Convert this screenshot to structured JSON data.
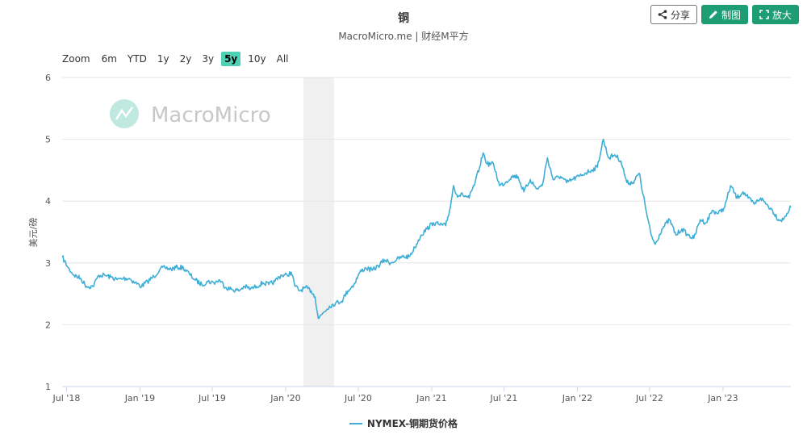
{
  "chart_data": {
    "type": "line",
    "title": "铜",
    "subtitle": "MacroMicro.me | 财经M平方",
    "ylabel": "美元/磅",
    "ylim": [
      1,
      6
    ],
    "yticks": [
      "1",
      "2",
      "3",
      "4",
      "5",
      "6"
    ],
    "xlim": [
      "2018-06-20",
      "2023-06-20"
    ],
    "xticks": [
      {
        "date": "2018-07-01",
        "label": "Jul '18"
      },
      {
        "date": "2019-01-01",
        "label": "Jan '19"
      },
      {
        "date": "2019-07-01",
        "label": "Jul '19"
      },
      {
        "date": "2020-01-01",
        "label": "Jan '20"
      },
      {
        "date": "2020-07-01",
        "label": "Jul '20"
      },
      {
        "date": "2021-01-01",
        "label": "Jan '21"
      },
      {
        "date": "2021-07-01",
        "label": "Jul '21"
      },
      {
        "date": "2022-01-01",
        "label": "Jan '22"
      },
      {
        "date": "2022-07-01",
        "label": "Jul '22"
      },
      {
        "date": "2023-01-01",
        "label": "Jan '23"
      }
    ],
    "recession_band": {
      "start": "2020-02-15",
      "end": "2020-05-01",
      "color": "#f0f0f0"
    },
    "grid": true,
    "legend_position": "bottom-center",
    "series": [
      {
        "name": "NYMEX-铜期货价格",
        "color": "#3faed6",
        "points": [
          [
            "2018-06-20",
            3.1
          ],
          [
            "2018-07-05",
            2.92
          ],
          [
            "2018-07-20",
            2.8
          ],
          [
            "2018-08-05",
            2.75
          ],
          [
            "2018-08-20",
            2.62
          ],
          [
            "2018-09-05",
            2.62
          ],
          [
            "2018-09-20",
            2.8
          ],
          [
            "2018-10-05",
            2.8
          ],
          [
            "2018-10-20",
            2.77
          ],
          [
            "2018-11-05",
            2.73
          ],
          [
            "2018-11-20",
            2.75
          ],
          [
            "2018-12-05",
            2.75
          ],
          [
            "2018-12-20",
            2.68
          ],
          [
            "2019-01-05",
            2.62
          ],
          [
            "2019-01-20",
            2.7
          ],
          [
            "2019-02-05",
            2.78
          ],
          [
            "2019-02-20",
            2.9
          ],
          [
            "2019-03-05",
            2.92
          ],
          [
            "2019-03-20",
            2.9
          ],
          [
            "2019-04-05",
            2.93
          ],
          [
            "2019-04-20",
            2.92
          ],
          [
            "2019-05-05",
            2.82
          ],
          [
            "2019-05-20",
            2.72
          ],
          [
            "2019-06-05",
            2.65
          ],
          [
            "2019-06-20",
            2.7
          ],
          [
            "2019-07-05",
            2.68
          ],
          [
            "2019-07-20",
            2.72
          ],
          [
            "2019-08-05",
            2.6
          ],
          [
            "2019-08-20",
            2.57
          ],
          [
            "2019-09-05",
            2.55
          ],
          [
            "2019-09-20",
            2.62
          ],
          [
            "2019-10-05",
            2.58
          ],
          [
            "2019-10-20",
            2.62
          ],
          [
            "2019-11-05",
            2.68
          ],
          [
            "2019-11-20",
            2.65
          ],
          [
            "2019-12-05",
            2.7
          ],
          [
            "2019-12-20",
            2.8
          ],
          [
            "2020-01-05",
            2.8
          ],
          [
            "2020-01-15",
            2.85
          ],
          [
            "2020-01-25",
            2.62
          ],
          [
            "2020-02-05",
            2.55
          ],
          [
            "2020-02-20",
            2.6
          ],
          [
            "2020-03-05",
            2.55
          ],
          [
            "2020-03-15",
            2.45
          ],
          [
            "2020-03-23",
            2.1
          ],
          [
            "2020-04-05",
            2.2
          ],
          [
            "2020-04-20",
            2.3
          ],
          [
            "2020-05-05",
            2.35
          ],
          [
            "2020-05-20",
            2.38
          ],
          [
            "2020-06-05",
            2.55
          ],
          [
            "2020-06-20",
            2.65
          ],
          [
            "2020-07-05",
            2.85
          ],
          [
            "2020-07-20",
            2.92
          ],
          [
            "2020-08-05",
            2.88
          ],
          [
            "2020-08-20",
            2.95
          ],
          [
            "2020-09-05",
            3.05
          ],
          [
            "2020-09-20",
            3.0
          ],
          [
            "2020-10-05",
            3.05
          ],
          [
            "2020-10-20",
            3.1
          ],
          [
            "2020-11-05",
            3.1
          ],
          [
            "2020-11-20",
            3.25
          ],
          [
            "2020-12-05",
            3.45
          ],
          [
            "2020-12-20",
            3.55
          ],
          [
            "2021-01-05",
            3.65
          ],
          [
            "2021-01-20",
            3.62
          ],
          [
            "2021-02-05",
            3.6
          ],
          [
            "2021-02-15",
            3.85
          ],
          [
            "2021-02-25",
            4.25
          ],
          [
            "2021-03-05",
            4.1
          ],
          [
            "2021-03-20",
            4.1
          ],
          [
            "2021-04-05",
            4.05
          ],
          [
            "2021-04-20",
            4.3
          ],
          [
            "2021-05-01",
            4.55
          ],
          [
            "2021-05-10",
            4.78
          ],
          [
            "2021-05-20",
            4.6
          ],
          [
            "2021-06-05",
            4.6
          ],
          [
            "2021-06-20",
            4.25
          ],
          [
            "2021-07-05",
            4.3
          ],
          [
            "2021-07-20",
            4.4
          ],
          [
            "2021-08-05",
            4.4
          ],
          [
            "2021-08-20",
            4.15
          ],
          [
            "2021-09-05",
            4.35
          ],
          [
            "2021-09-20",
            4.2
          ],
          [
            "2021-10-05",
            4.25
          ],
          [
            "2021-10-18",
            4.7
          ],
          [
            "2021-11-01",
            4.35
          ],
          [
            "2021-11-20",
            4.4
          ],
          [
            "2021-12-05",
            4.3
          ],
          [
            "2021-12-20",
            4.35
          ],
          [
            "2022-01-05",
            4.4
          ],
          [
            "2022-01-20",
            4.45
          ],
          [
            "2022-02-05",
            4.5
          ],
          [
            "2022-02-20",
            4.55
          ],
          [
            "2022-03-07",
            5.0
          ],
          [
            "2022-03-20",
            4.7
          ],
          [
            "2022-04-05",
            4.75
          ],
          [
            "2022-04-20",
            4.65
          ],
          [
            "2022-05-05",
            4.3
          ],
          [
            "2022-05-20",
            4.3
          ],
          [
            "2022-06-05",
            4.45
          ],
          [
            "2022-06-15",
            4.1
          ],
          [
            "2022-06-25",
            3.75
          ],
          [
            "2022-07-05",
            3.45
          ],
          [
            "2022-07-15",
            3.3
          ],
          [
            "2022-08-01",
            3.55
          ],
          [
            "2022-08-20",
            3.7
          ],
          [
            "2022-09-05",
            3.45
          ],
          [
            "2022-09-20",
            3.55
          ],
          [
            "2022-10-05",
            3.45
          ],
          [
            "2022-10-20",
            3.4
          ],
          [
            "2022-11-05",
            3.7
          ],
          [
            "2022-11-20",
            3.65
          ],
          [
            "2022-12-05",
            3.85
          ],
          [
            "2022-12-20",
            3.8
          ],
          [
            "2023-01-05",
            3.9
          ],
          [
            "2023-01-20",
            4.25
          ],
          [
            "2023-02-05",
            4.05
          ],
          [
            "2023-02-20",
            4.15
          ],
          [
            "2023-03-05",
            4.05
          ],
          [
            "2023-03-20",
            3.95
          ],
          [
            "2023-04-05",
            4.05
          ],
          [
            "2023-04-20",
            3.95
          ],
          [
            "2023-05-05",
            3.85
          ],
          [
            "2023-05-20",
            3.7
          ],
          [
            "2023-06-01",
            3.7
          ],
          [
            "2023-06-10",
            3.8
          ],
          [
            "2023-06-20",
            3.9
          ]
        ]
      }
    ]
  },
  "toolbar": {
    "share_label": "分享",
    "draw_label": "制图",
    "expand_label": "放大"
  },
  "zoom": {
    "label": "Zoom",
    "options": [
      "6m",
      "YTD",
      "1y",
      "2y",
      "3y",
      "5y",
      "10y",
      "All"
    ],
    "active": "5y"
  },
  "watermark": {
    "text": "MacroMicro"
  },
  "colors": {
    "accent": "#1d9d74",
    "line": "#3faed6",
    "zoom_active": "#4fd1b5"
  }
}
